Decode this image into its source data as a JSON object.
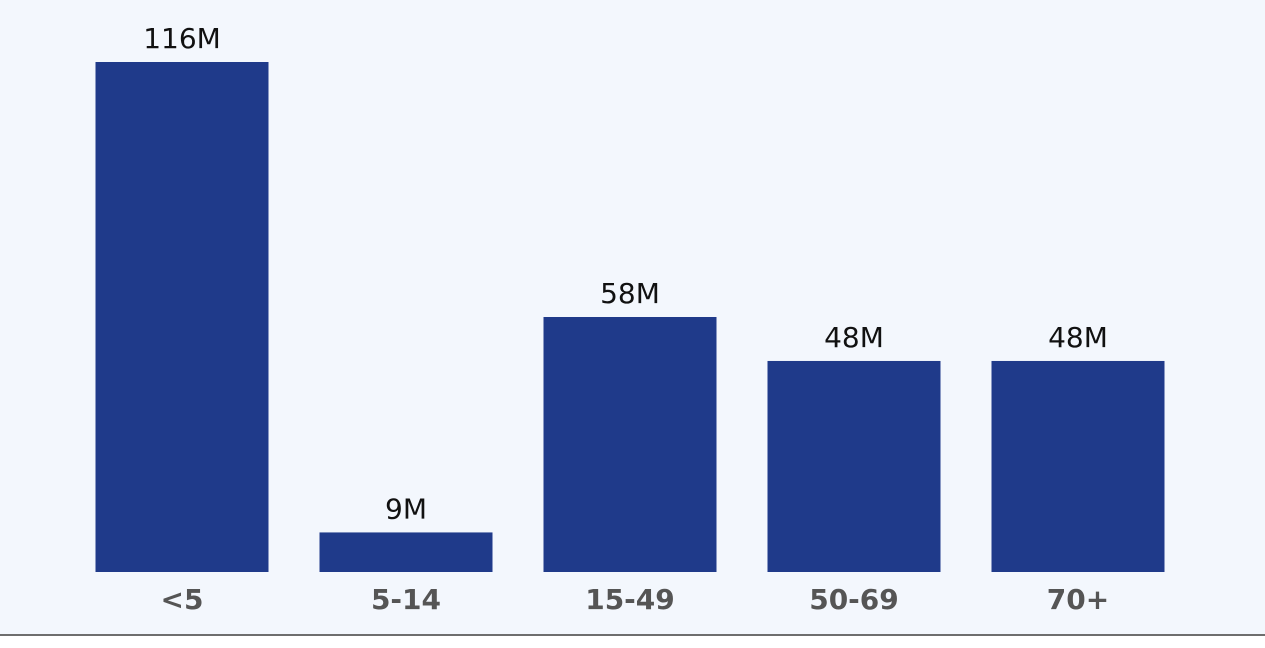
{
  "chart_data": {
    "type": "bar",
    "title": "",
    "xlabel": "",
    "ylabel": "",
    "categories": [
      "<5",
      "5-14",
      "15-49",
      "50-69",
      "70+"
    ],
    "values": [
      116,
      9,
      58,
      48,
      48
    ],
    "data_labels": [
      "116M",
      "9M",
      "58M",
      "48M",
      "48M"
    ],
    "ylim": [
      0,
      116
    ],
    "grid": false,
    "legend": "none",
    "bar_color": "#1f3a8a",
    "background_color": "#f3f7fd",
    "tick_label_color": "#555555",
    "data_label_color": "#111111"
  }
}
